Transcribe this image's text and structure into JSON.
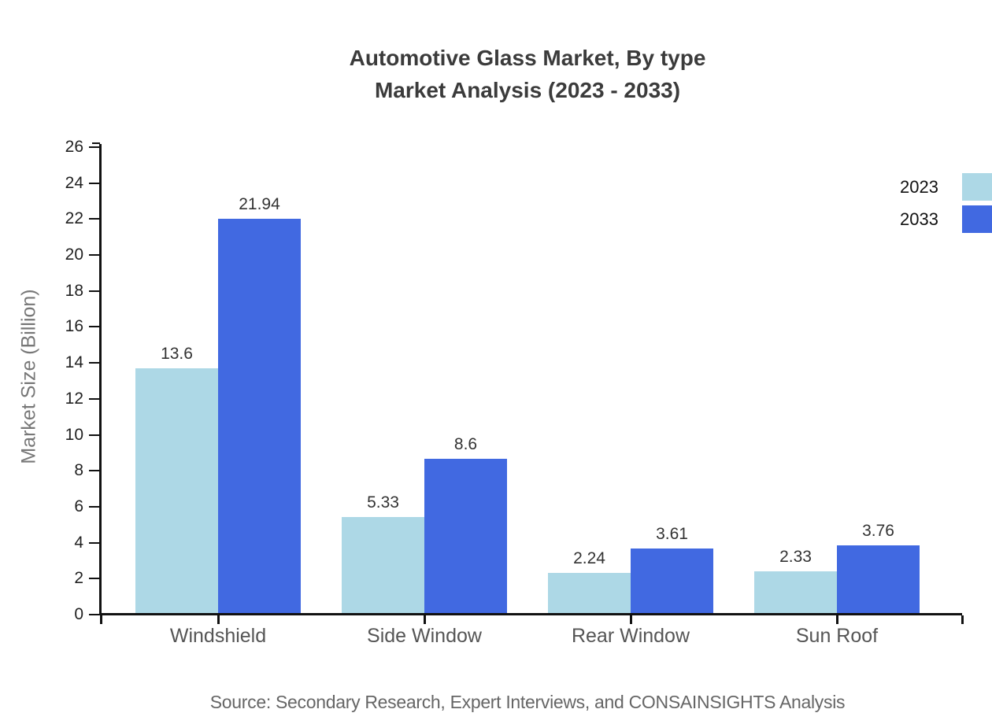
{
  "title": {
    "line1": "Automotive Glass Market, By type",
    "line2": "Market Analysis (2023 - 2033)"
  },
  "y_axis": {
    "label": "Market Size (Billion)",
    "tick_values": [
      0,
      2,
      4,
      6,
      8,
      10,
      12,
      14,
      16,
      18,
      20,
      22,
      24,
      26
    ]
  },
  "legend": [
    {
      "label": "2023",
      "color": "#ADD8E6"
    },
    {
      "label": "2033",
      "color": "#4169E1"
    }
  ],
  "source": "Source: Secondary Research, Expert Interviews, and CONSAINSIGHTS Analysis",
  "chart_data": {
    "type": "bar",
    "title": "Automotive Glass Market, By type — Market Analysis (2023 - 2033)",
    "categories": [
      "Windshield",
      "Side Window",
      "Rear Window",
      "Sun Roof"
    ],
    "series": [
      {
        "name": "2023",
        "color": "#ADD8E6",
        "values": [
          13.6,
          5.33,
          2.24,
          2.33
        ]
      },
      {
        "name": "2033",
        "color": "#4169E1",
        "values": [
          21.94,
          8.6,
          3.61,
          3.76
        ]
      }
    ],
    "value_labels": [
      "13.6",
      "21.94",
      "5.33",
      "8.6",
      "2.24",
      "3.61",
      "2.33",
      "3.76"
    ],
    "xlabel": "",
    "ylabel": "Market Size (Billion)",
    "ylim": [
      0,
      26
    ],
    "ytick_step": 2,
    "grid": false,
    "legend_position": "top-right",
    "background": "#ffffff"
  }
}
